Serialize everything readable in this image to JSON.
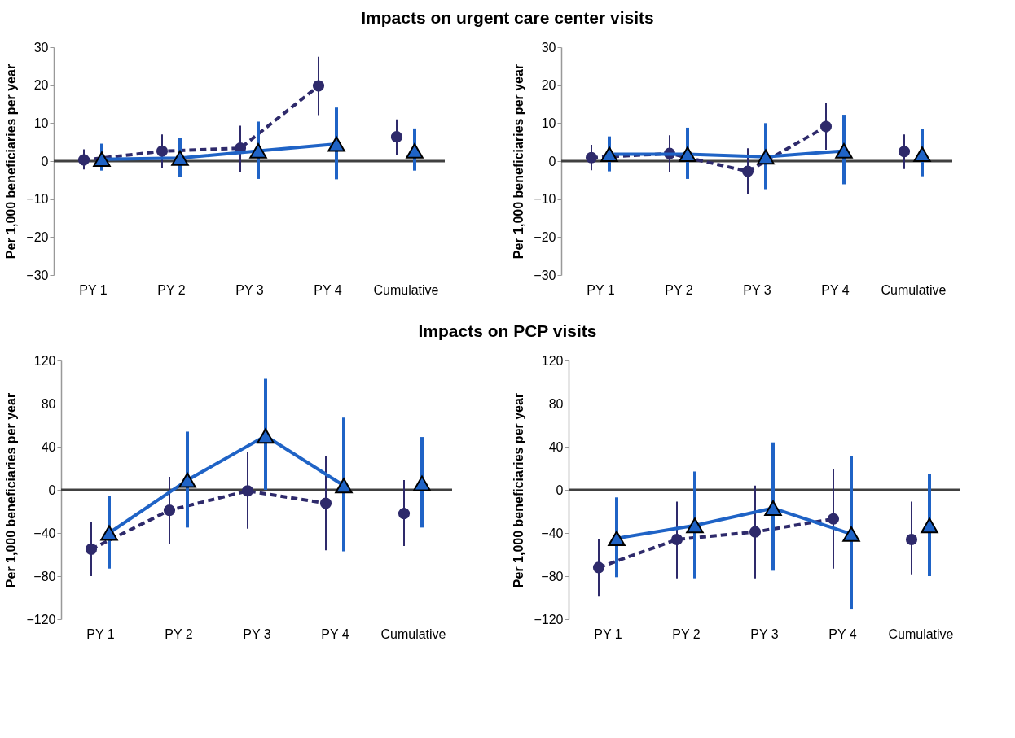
{
  "chart_data": [
    {
      "type": "line",
      "title": "Impacts on urgent care center visits",
      "categories": [
        "PY 1",
        "PY 2",
        "PY 3",
        "PY 4",
        "Cumulative"
      ],
      "ylabel": "Per 1,000 beneficiaries per year",
      "ylim": [
        -30,
        30
      ],
      "yticks": [
        -30,
        -20,
        -10,
        0,
        10,
        20,
        30
      ],
      "grid": false,
      "ref_lines": [
        {
          "axis": "y",
          "value": 0,
          "color": "#404040"
        }
      ],
      "series": [
        {
          "type": "line",
          "color": "#2e2a6b",
          "marker": "circle",
          "line_style": "dashed",
          "values": [
            0.3,
            2.6,
            3.4,
            19.8,
            null
          ],
          "errors": [
            [
              -2.2,
              3.1
            ],
            [
              -1.7,
              7
            ],
            [
              -3,
              9.3
            ],
            [
              12.1,
              27.5
            ],
            null
          ]
        },
        {
          "type": "line",
          "color": "#1f63c6",
          "marker": "triangle",
          "line_style": "solid",
          "values": [
            0.5,
            0.8,
            2.7,
            4.5,
            null
          ],
          "errors": [
            [
              -2.5,
              4.6
            ],
            [
              -4.2,
              6.1
            ],
            [
              -4.7,
              10.4
            ],
            [
              -4.8,
              14.1
            ],
            null
          ]
        },
        {
          "type": "scatter",
          "color": "#2e2a6b",
          "marker": "circle",
          "values": [
            null,
            null,
            null,
            null,
            6.4
          ],
          "errors": [
            null,
            null,
            null,
            null,
            [
              1.7,
              11
            ]
          ]
        },
        {
          "type": "scatter",
          "color": "#1f63c6",
          "marker": "triangle",
          "values": [
            null,
            null,
            null,
            null,
            2.7
          ],
          "errors": [
            null,
            null,
            null,
            null,
            [
              -2.5,
              8.6
            ]
          ]
        }
      ]
    },
    {
      "type": "line",
      "categories": [
        "PY 1",
        "PY 2",
        "PY 3",
        "PY 4",
        "Cumulative"
      ],
      "ylabel": "Per 1,000 beneficiaries per year",
      "ylim": [
        -30,
        30
      ],
      "yticks": [
        -30,
        -20,
        -10,
        0,
        10,
        20,
        30
      ],
      "grid": false,
      "ref_lines": [
        {
          "axis": "y",
          "value": 0,
          "color": "#404040"
        }
      ],
      "series": [
        {
          "type": "line",
          "color": "#2e2a6b",
          "marker": "circle",
          "line_style": "dashed",
          "values": [
            0.9,
            2,
            -2.7,
            9.1,
            null
          ],
          "errors": [
            [
              -2.4,
              4.3
            ],
            [
              -2.8,
              6.8
            ],
            [
              -8.6,
              3.4
            ],
            [
              3,
              15.4
            ],
            null
          ]
        },
        {
          "type": "line",
          "color": "#1f63c6",
          "marker": "triangle",
          "line_style": "solid",
          "values": [
            1.8,
            1.8,
            1.1,
            2.7,
            null
          ],
          "errors": [
            [
              -2.7,
              6.5
            ],
            [
              -4.7,
              8.8
            ],
            [
              -7.4,
              10
            ],
            [
              -6.1,
              12.2
            ],
            null
          ]
        },
        {
          "type": "scatter",
          "color": "#2e2a6b",
          "marker": "circle",
          "values": [
            null,
            null,
            null,
            null,
            2.5
          ],
          "errors": [
            null,
            null,
            null,
            null,
            [
              -2.1,
              7
            ]
          ]
        },
        {
          "type": "scatter",
          "color": "#1f63c6",
          "marker": "triangle",
          "values": [
            null,
            null,
            null,
            null,
            1.8
          ],
          "errors": [
            null,
            null,
            null,
            null,
            [
              -4,
              8.4
            ]
          ]
        }
      ]
    },
    {
      "type": "line",
      "title": "Impacts on PCP visits",
      "categories": [
        "PY 1",
        "PY 2",
        "PY 3",
        "PY 4",
        "Cumulative"
      ],
      "ylabel": "Per 1,000 beneficiaries per year",
      "ylim": [
        -120,
        120
      ],
      "yticks": [
        -120,
        -80,
        -40,
        0,
        40,
        80,
        120
      ],
      "grid": false,
      "ref_lines": [
        {
          "axis": "y",
          "value": 0,
          "color": "#404040"
        }
      ],
      "series": [
        {
          "type": "line",
          "color": "#2e2a6b",
          "marker": "circle",
          "line_style": "dashed",
          "values": [
            -55,
            -19,
            -1,
            -12.5,
            null
          ],
          "errors": [
            [
              -80,
              -30
            ],
            [
              -50,
              12
            ],
            [
              -36,
              35
            ],
            [
              -56,
              31
            ],
            null
          ]
        },
        {
          "type": "line",
          "color": "#1f63c6",
          "marker": "triangle",
          "line_style": "solid",
          "values": [
            -40,
            9,
            50,
            4,
            null
          ],
          "errors": [
            [
              -73,
              -6
            ],
            [
              -35,
              54
            ],
            [
              0,
              103
            ],
            [
              -57,
              67
            ],
            null
          ]
        },
        {
          "type": "scatter",
          "color": "#2e2a6b",
          "marker": "circle",
          "values": [
            null,
            null,
            null,
            null,
            -22
          ],
          "errors": [
            null,
            null,
            null,
            null,
            [
              -52,
              9
            ]
          ]
        },
        {
          "type": "scatter",
          "color": "#1f63c6",
          "marker": "triangle",
          "values": [
            null,
            null,
            null,
            null,
            6
          ],
          "errors": [
            null,
            null,
            null,
            null,
            [
              -35,
              49
            ]
          ]
        }
      ]
    },
    {
      "type": "line",
      "categories": [
        "PY 1",
        "PY 2",
        "PY 3",
        "PY 4",
        "Cumulative"
      ],
      "ylabel": "Per 1,000 beneficiaries per year",
      "ylim": [
        -120,
        120
      ],
      "yticks": [
        -120,
        -80,
        -40,
        0,
        40,
        80,
        120
      ],
      "grid": false,
      "ref_lines": [
        {
          "axis": "y",
          "value": 0,
          "color": "#404040"
        }
      ],
      "series": [
        {
          "type": "line",
          "color": "#2e2a6b",
          "marker": "circle",
          "line_style": "dashed",
          "values": [
            -72,
            -46,
            -39,
            -27,
            null
          ],
          "errors": [
            [
              -99,
              -46
            ],
            [
              -82,
              -11
            ],
            [
              -82,
              4
            ],
            [
              -73,
              19
            ],
            null
          ]
        },
        {
          "type": "line",
          "color": "#1f63c6",
          "marker": "triangle",
          "line_style": "solid",
          "values": [
            -45,
            -33,
            -17,
            -41,
            null
          ],
          "errors": [
            [
              -81,
              -7
            ],
            [
              -82,
              17
            ],
            [
              -75,
              44
            ],
            [
              -111,
              31
            ],
            null
          ]
        },
        {
          "type": "scatter",
          "color": "#2e2a6b",
          "marker": "circle",
          "values": [
            null,
            null,
            null,
            null,
            -46
          ],
          "errors": [
            null,
            null,
            null,
            null,
            [
              -79,
              -11
            ]
          ]
        },
        {
          "type": "scatter",
          "color": "#1f63c6",
          "marker": "triangle",
          "values": [
            null,
            null,
            null,
            null,
            -33
          ],
          "errors": [
            null,
            null,
            null,
            null,
            [
              -80,
              15
            ]
          ]
        }
      ]
    }
  ]
}
